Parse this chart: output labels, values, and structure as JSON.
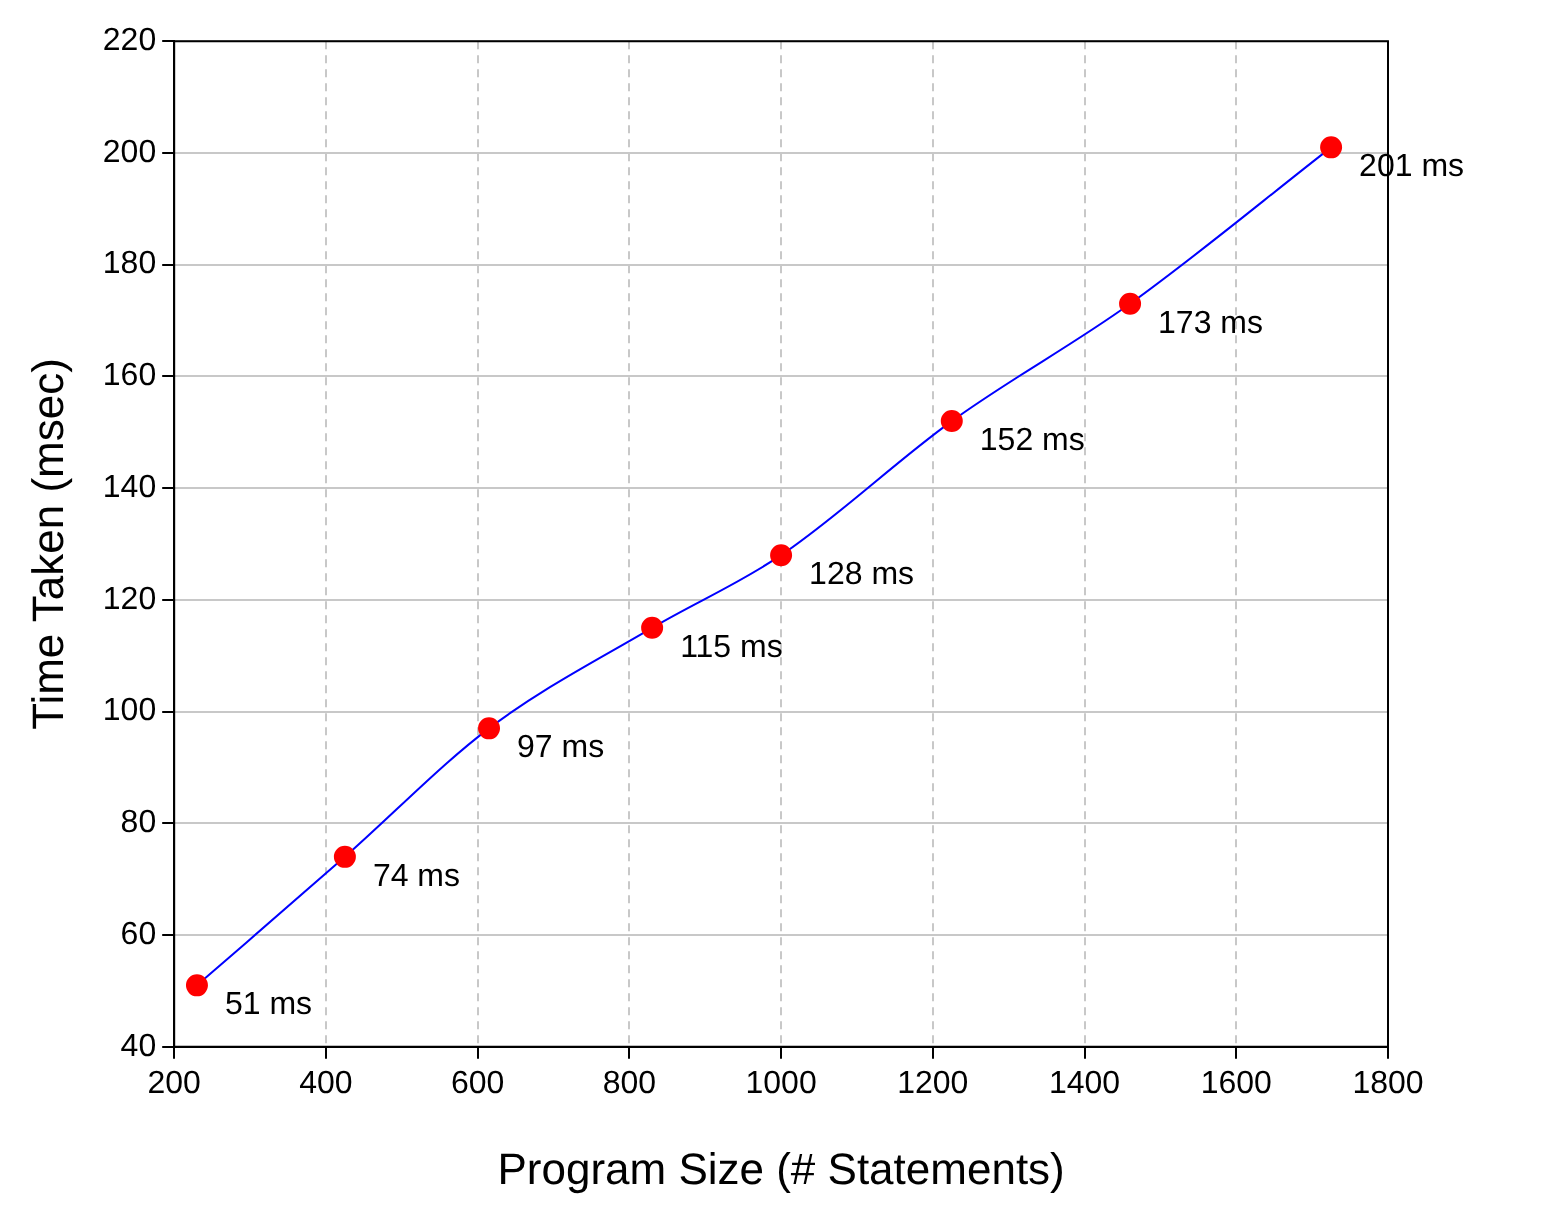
{
  "chart_data": {
    "type": "line",
    "xlabel": "Program Size (# Statements)",
    "ylabel": "Time Taken (msec)",
    "x": [
      230,
      425,
      615,
      830,
      1000,
      1225,
      1460,
      1725
    ],
    "series": [
      {
        "color": "#0000ff",
        "colors": [
          "#ff0000",
          "#ff0000",
          "#ff0000",
          "#ff0000",
          "#ff0000",
          "#ff0000",
          "#ff0000",
          "#ff0000"
        ],
        "values": [
          51,
          74,
          97,
          115,
          128,
          152,
          173,
          201
        ],
        "value_labels": [
          "51 ms",
          "74 ms",
          "97 ms",
          "115 ms",
          "128 ms",
          "152 ms",
          "173 ms",
          "201 ms"
        ]
      }
    ],
    "xlim": [
      200,
      1800
    ],
    "xticks": [
      200,
      400,
      600,
      800,
      1000,
      1200,
      1400,
      1600,
      1800
    ],
    "ylim": [
      40,
      220
    ],
    "yticks": [
      40,
      60,
      80,
      100,
      120,
      140,
      160,
      180,
      200,
      220
    ],
    "grid": true,
    "legend": false,
    "marker": "circle",
    "line_style": "solid"
  }
}
